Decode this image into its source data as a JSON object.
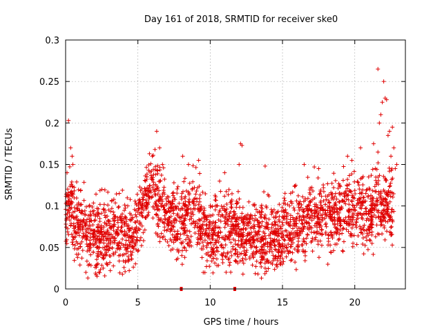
{
  "chart_data": {
    "type": "scatter",
    "title": "Day 161 of 2018, SRMTID for receiver ske0",
    "xlabel": "GPS time / hours",
    "ylabel": "SRMTID / TECUs",
    "xlim": [
      0,
      23.5
    ],
    "ylim": [
      0,
      0.3
    ],
    "xticks": [
      "0",
      "5",
      "10",
      "15",
      "20"
    ],
    "xtick_values": [
      0,
      5,
      10,
      15,
      20
    ],
    "yticks": [
      "0",
      "0.05",
      "0.1",
      "0.15",
      "0.2",
      "0.25",
      "0.3"
    ],
    "ytick_values": [
      0,
      0.05,
      0.1,
      0.15,
      0.2,
      0.25,
      0.3
    ],
    "grid": true,
    "marker": "plus",
    "color": "#e00000",
    "series": [
      {
        "name": "SRMTID",
        "trend_x": [
          0,
          0.3,
          1,
          2,
          3,
          4,
          4.7,
          5.5,
          6,
          6.5,
          7,
          8,
          9,
          9.5,
          10,
          11,
          12,
          13,
          14,
          15,
          16,
          17,
          18,
          19,
          19.5,
          20,
          21,
          21.5,
          22,
          22.7
        ],
        "trend_y": [
          0.085,
          0.1,
          0.075,
          0.06,
          0.065,
          0.07,
          0.06,
          0.11,
          0.12,
          0.1,
          0.09,
          0.085,
          0.095,
          0.07,
          0.065,
          0.07,
          0.065,
          0.06,
          0.06,
          0.065,
          0.075,
          0.085,
          0.09,
          0.09,
          0.1,
          0.095,
          0.085,
          0.11,
          0.095,
          0.1
        ],
        "outliers": [
          [
            0.2,
            0.203
          ],
          [
            0.35,
            0.17
          ],
          [
            0.45,
            0.16
          ],
          [
            0.1,
            0.14
          ],
          [
            0.5,
            0.15
          ],
          [
            5.8,
            0.163
          ],
          [
            6.3,
            0.19
          ],
          [
            6.5,
            0.17
          ],
          [
            6.0,
            0.16
          ],
          [
            6.7,
            0.15
          ],
          [
            9.2,
            0.155
          ],
          [
            8.1,
            0.16
          ],
          [
            8.5,
            0.15
          ],
          [
            11.0,
            0.14
          ],
          [
            12.1,
            0.175
          ],
          [
            12.2,
            0.173
          ],
          [
            12.0,
            0.15
          ],
          [
            13.8,
            0.148
          ],
          [
            16.5,
            0.15
          ],
          [
            17.2,
            0.147
          ],
          [
            17.5,
            0.145
          ],
          [
            19.5,
            0.16
          ],
          [
            19.8,
            0.155
          ],
          [
            20.4,
            0.17
          ],
          [
            21.3,
            0.175
          ],
          [
            21.6,
            0.165
          ],
          [
            21.7,
            0.2
          ],
          [
            21.8,
            0.21
          ],
          [
            21.9,
            0.225
          ],
          [
            21.6,
            0.265
          ],
          [
            22.0,
            0.25
          ],
          [
            22.1,
            0.23
          ],
          [
            22.2,
            0.228
          ],
          [
            22.4,
            0.19
          ],
          [
            22.3,
            0.185
          ],
          [
            22.6,
            0.195
          ],
          [
            22.7,
            0.17
          ],
          [
            22.5,
            0.16
          ],
          [
            22.8,
            0.145
          ],
          [
            22.9,
            0.15
          ],
          [
            2.3,
            0.02
          ],
          [
            2.6,
            0.025
          ],
          [
            4.4,
            0.022
          ],
          [
            11.1,
            0.02
          ],
          [
            13.3,
            0.018
          ],
          [
            13.8,
            0.025
          ]
        ],
        "zero_values": [
          [
            8.0,
            0.0
          ],
          [
            11.7,
            0.0
          ]
        ]
      }
    ]
  }
}
